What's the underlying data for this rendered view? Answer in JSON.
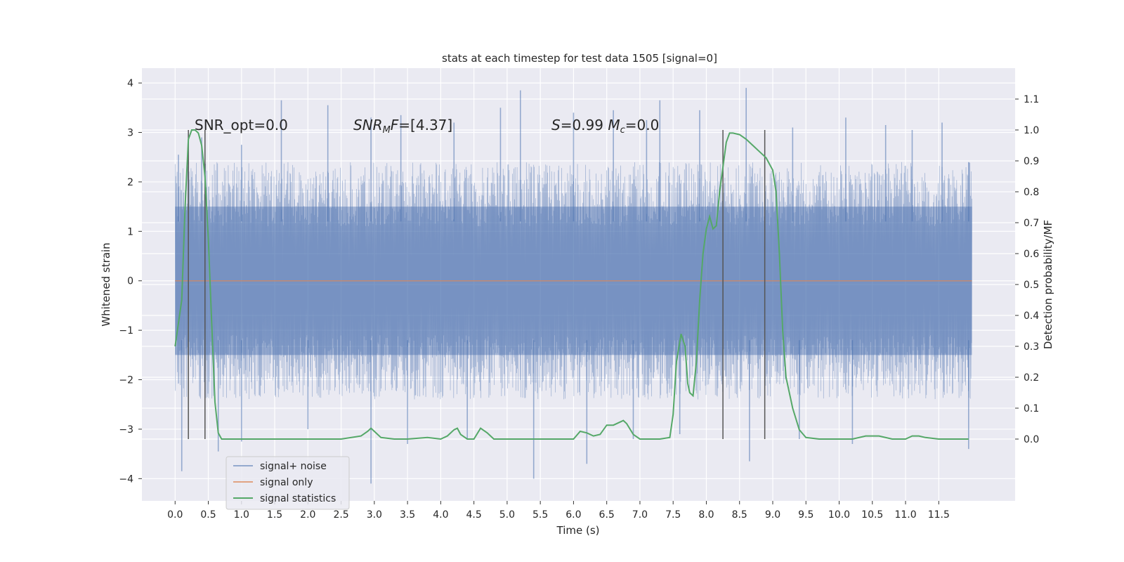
{
  "chart_data": {
    "type": "line",
    "title": "stats at each timestep for test data 1505 [signal=0]",
    "xlabel": "Time (s)",
    "ylabel_left": "Whitened strain",
    "ylabel_right": "Detection probability/MF",
    "xlim": [
      -0.5,
      12.65
    ],
    "ylim_left": [
      -4.45,
      4.3
    ],
    "ylim_right": [
      -0.2,
      1.2
    ],
    "x_ticks": [
      "0.0",
      "0.5",
      "1.0",
      "1.5",
      "2.0",
      "2.5",
      "3.0",
      "3.5",
      "4.0",
      "4.5",
      "5.0",
      "5.5",
      "6.0",
      "6.5",
      "7.0",
      "7.5",
      "8.0",
      "8.5",
      "9.0",
      "9.5",
      "10.0",
      "10.5",
      "11.0",
      "11.5"
    ],
    "y_ticks_left": [
      "4",
      "3",
      "2",
      "1",
      "0",
      "−1",
      "−2",
      "−3",
      "−4"
    ],
    "y_ticks_right": [
      "1.1",
      "1.0",
      "0.9",
      "0.8",
      "0.7",
      "0.6",
      "0.5",
      "0.4",
      "0.3",
      "0.2",
      "0.1",
      "0.0"
    ],
    "grid": true,
    "legend_placement": "lower-left",
    "legend": [
      "signal+ noise",
      "signal only",
      "signal statistics"
    ],
    "colors": {
      "noise": "#4c72b0",
      "signal": "#dd8452",
      "stats": "#55a868",
      "markers": "#555555",
      "background": "#eaeaf2"
    },
    "noise": {
      "name": "signal+ noise",
      "x_range": [
        0.0,
        12.0
      ],
      "typical_band": [
        -1.5,
        1.5
      ],
      "peaks_up": [
        [
          0.05,
          2.55
        ],
        [
          0.4,
          2.9
        ],
        [
          1.0,
          2.75
        ],
        [
          1.6,
          3.65
        ],
        [
          2.3,
          3.55
        ],
        [
          2.95,
          3.3
        ],
        [
          3.4,
          3.35
        ],
        [
          4.2,
          3.2
        ],
        [
          4.9,
          3.5
        ],
        [
          5.2,
          3.85
        ],
        [
          6.0,
          3.4
        ],
        [
          6.6,
          3.45
        ],
        [
          7.1,
          3.25
        ],
        [
          7.3,
          3.65
        ],
        [
          7.9,
          3.45
        ],
        [
          8.6,
          3.9
        ],
        [
          9.3,
          3.1
        ],
        [
          10.1,
          3.3
        ],
        [
          10.7,
          3.15
        ],
        [
          11.1,
          3.05
        ],
        [
          11.55,
          3.2
        ],
        [
          11.95,
          2.4
        ]
      ],
      "peaks_down": [
        [
          0.1,
          -3.85
        ],
        [
          0.65,
          -3.45
        ],
        [
          1.0,
          -3.25
        ],
        [
          2.0,
          -3.0
        ],
        [
          2.95,
          -4.1
        ],
        [
          3.5,
          -3.3
        ],
        [
          4.4,
          -3.2
        ],
        [
          5.4,
          -4.0
        ],
        [
          6.2,
          -3.7
        ],
        [
          6.9,
          -3.2
        ],
        [
          7.6,
          -3.1
        ],
        [
          8.65,
          -3.65
        ],
        [
          9.4,
          -3.2
        ],
        [
          10.2,
          -3.3
        ],
        [
          11.95,
          -3.4
        ]
      ]
    },
    "signal_only": {
      "name": "signal only",
      "x": [
        0.0,
        12.0
      ],
      "y": [
        0.0,
        0.0
      ]
    },
    "stats": {
      "name": "signal statistics",
      "x": [
        0.0,
        0.1,
        0.15,
        0.2,
        0.25,
        0.3,
        0.35,
        0.4,
        0.45,
        0.5,
        0.55,
        0.6,
        0.65,
        0.7,
        0.8,
        1.0,
        2.0,
        2.5,
        2.8,
        2.9,
        2.95,
        3.0,
        3.1,
        3.3,
        3.5,
        3.8,
        4.0,
        4.1,
        4.2,
        4.25,
        4.3,
        4.4,
        4.5,
        4.6,
        4.7,
        4.8,
        5.0,
        5.5,
        5.8,
        6.0,
        6.1,
        6.2,
        6.3,
        6.4,
        6.5,
        6.6,
        6.7,
        6.75,
        6.8,
        6.9,
        7.0,
        7.3,
        7.45,
        7.5,
        7.55,
        7.62,
        7.68,
        7.72,
        7.75,
        7.8,
        7.85,
        7.9,
        7.95,
        8.0,
        8.05,
        8.1,
        8.15,
        8.2,
        8.3,
        8.35,
        8.4,
        8.5,
        8.6,
        8.7,
        8.8,
        8.9,
        9.0,
        9.05,
        9.1,
        9.15,
        9.2,
        9.3,
        9.4,
        9.5,
        9.7,
        10.0,
        10.2,
        10.4,
        10.6,
        10.8,
        11.0,
        11.1,
        11.2,
        11.3,
        11.5,
        11.7,
        11.95
      ],
      "y": [
        0.3,
        0.45,
        0.75,
        0.97,
        1.0,
        1.0,
        0.99,
        0.95,
        0.85,
        0.65,
        0.38,
        0.12,
        0.02,
        0.0,
        0.0,
        0.0,
        0.0,
        0.0,
        0.01,
        0.025,
        0.035,
        0.025,
        0.005,
        0.0,
        0.0,
        0.005,
        0.0,
        0.01,
        0.03,
        0.035,
        0.015,
        0.0,
        0.0,
        0.035,
        0.02,
        0.0,
        0.0,
        0.0,
        0.0,
        0.0,
        0.025,
        0.02,
        0.01,
        0.015,
        0.045,
        0.045,
        0.055,
        0.06,
        0.05,
        0.015,
        0.0,
        0.0,
        0.005,
        0.08,
        0.25,
        0.34,
        0.3,
        0.18,
        0.15,
        0.14,
        0.25,
        0.45,
        0.6,
        0.68,
        0.72,
        0.68,
        0.69,
        0.8,
        0.96,
        0.99,
        0.99,
        0.985,
        0.97,
        0.95,
        0.93,
        0.91,
        0.87,
        0.8,
        0.6,
        0.35,
        0.2,
        0.1,
        0.03,
        0.005,
        0.0,
        0.0,
        0.0,
        0.01,
        0.01,
        0.0,
        0.0,
        0.01,
        0.01,
        0.005,
        0.0,
        0.0,
        0.0
      ]
    },
    "markers_x": [
      0.2,
      0.45,
      8.25,
      8.88
    ],
    "annotations": [
      {
        "x": 0.2,
        "text": "SNR_opt=0.0"
      },
      {
        "x": 2.6,
        "text": "SNR_MF=[4.37]"
      },
      {
        "x": 5.6,
        "text": "S=0.99   M_c=0.0"
      }
    ]
  }
}
